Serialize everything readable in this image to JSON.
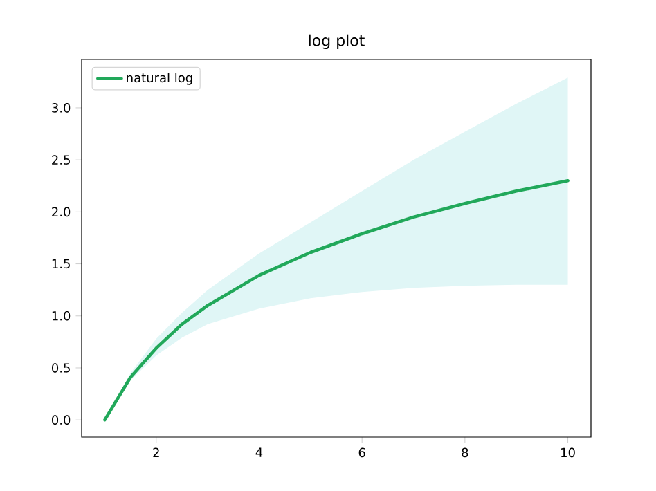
{
  "chart_data": {
    "type": "line",
    "title": "log plot",
    "x": [
      1,
      1.5,
      2,
      2.5,
      3,
      4,
      5,
      6,
      7,
      8,
      9,
      10
    ],
    "series": [
      {
        "name": "natural log",
        "color": "#21a85a",
        "values": [
          0,
          0.41,
          0.69,
          0.92,
          1.1,
          1.39,
          1.61,
          1.79,
          1.95,
          2.08,
          2.2,
          2.3
        ],
        "lower": [
          0,
          0.38,
          0.62,
          0.79,
          0.92,
          1.07,
          1.17,
          1.23,
          1.27,
          1.29,
          1.3,
          1.3
        ],
        "upper": [
          0,
          0.45,
          0.78,
          1.03,
          1.25,
          1.6,
          1.9,
          2.2,
          2.5,
          2.77,
          3.04,
          3.29
        ]
      }
    ],
    "xlim": [
      0.55,
      10.45
    ],
    "ylim": [
      -0.165,
      3.465
    ],
    "xticks": [
      2,
      4,
      6,
      8,
      10
    ],
    "yticks": [
      {
        "value": 0,
        "label": "0.0"
      },
      {
        "value": 0.5,
        "label": "0.5"
      },
      {
        "value": 1,
        "label": "1.0"
      },
      {
        "value": 1.5,
        "label": "1.5"
      },
      {
        "value": 2,
        "label": "2.0"
      },
      {
        "value": 2.5,
        "label": "2.5"
      },
      {
        "value": 3,
        "label": "3.0"
      }
    ],
    "legend": "top left",
    "grid": false
  }
}
